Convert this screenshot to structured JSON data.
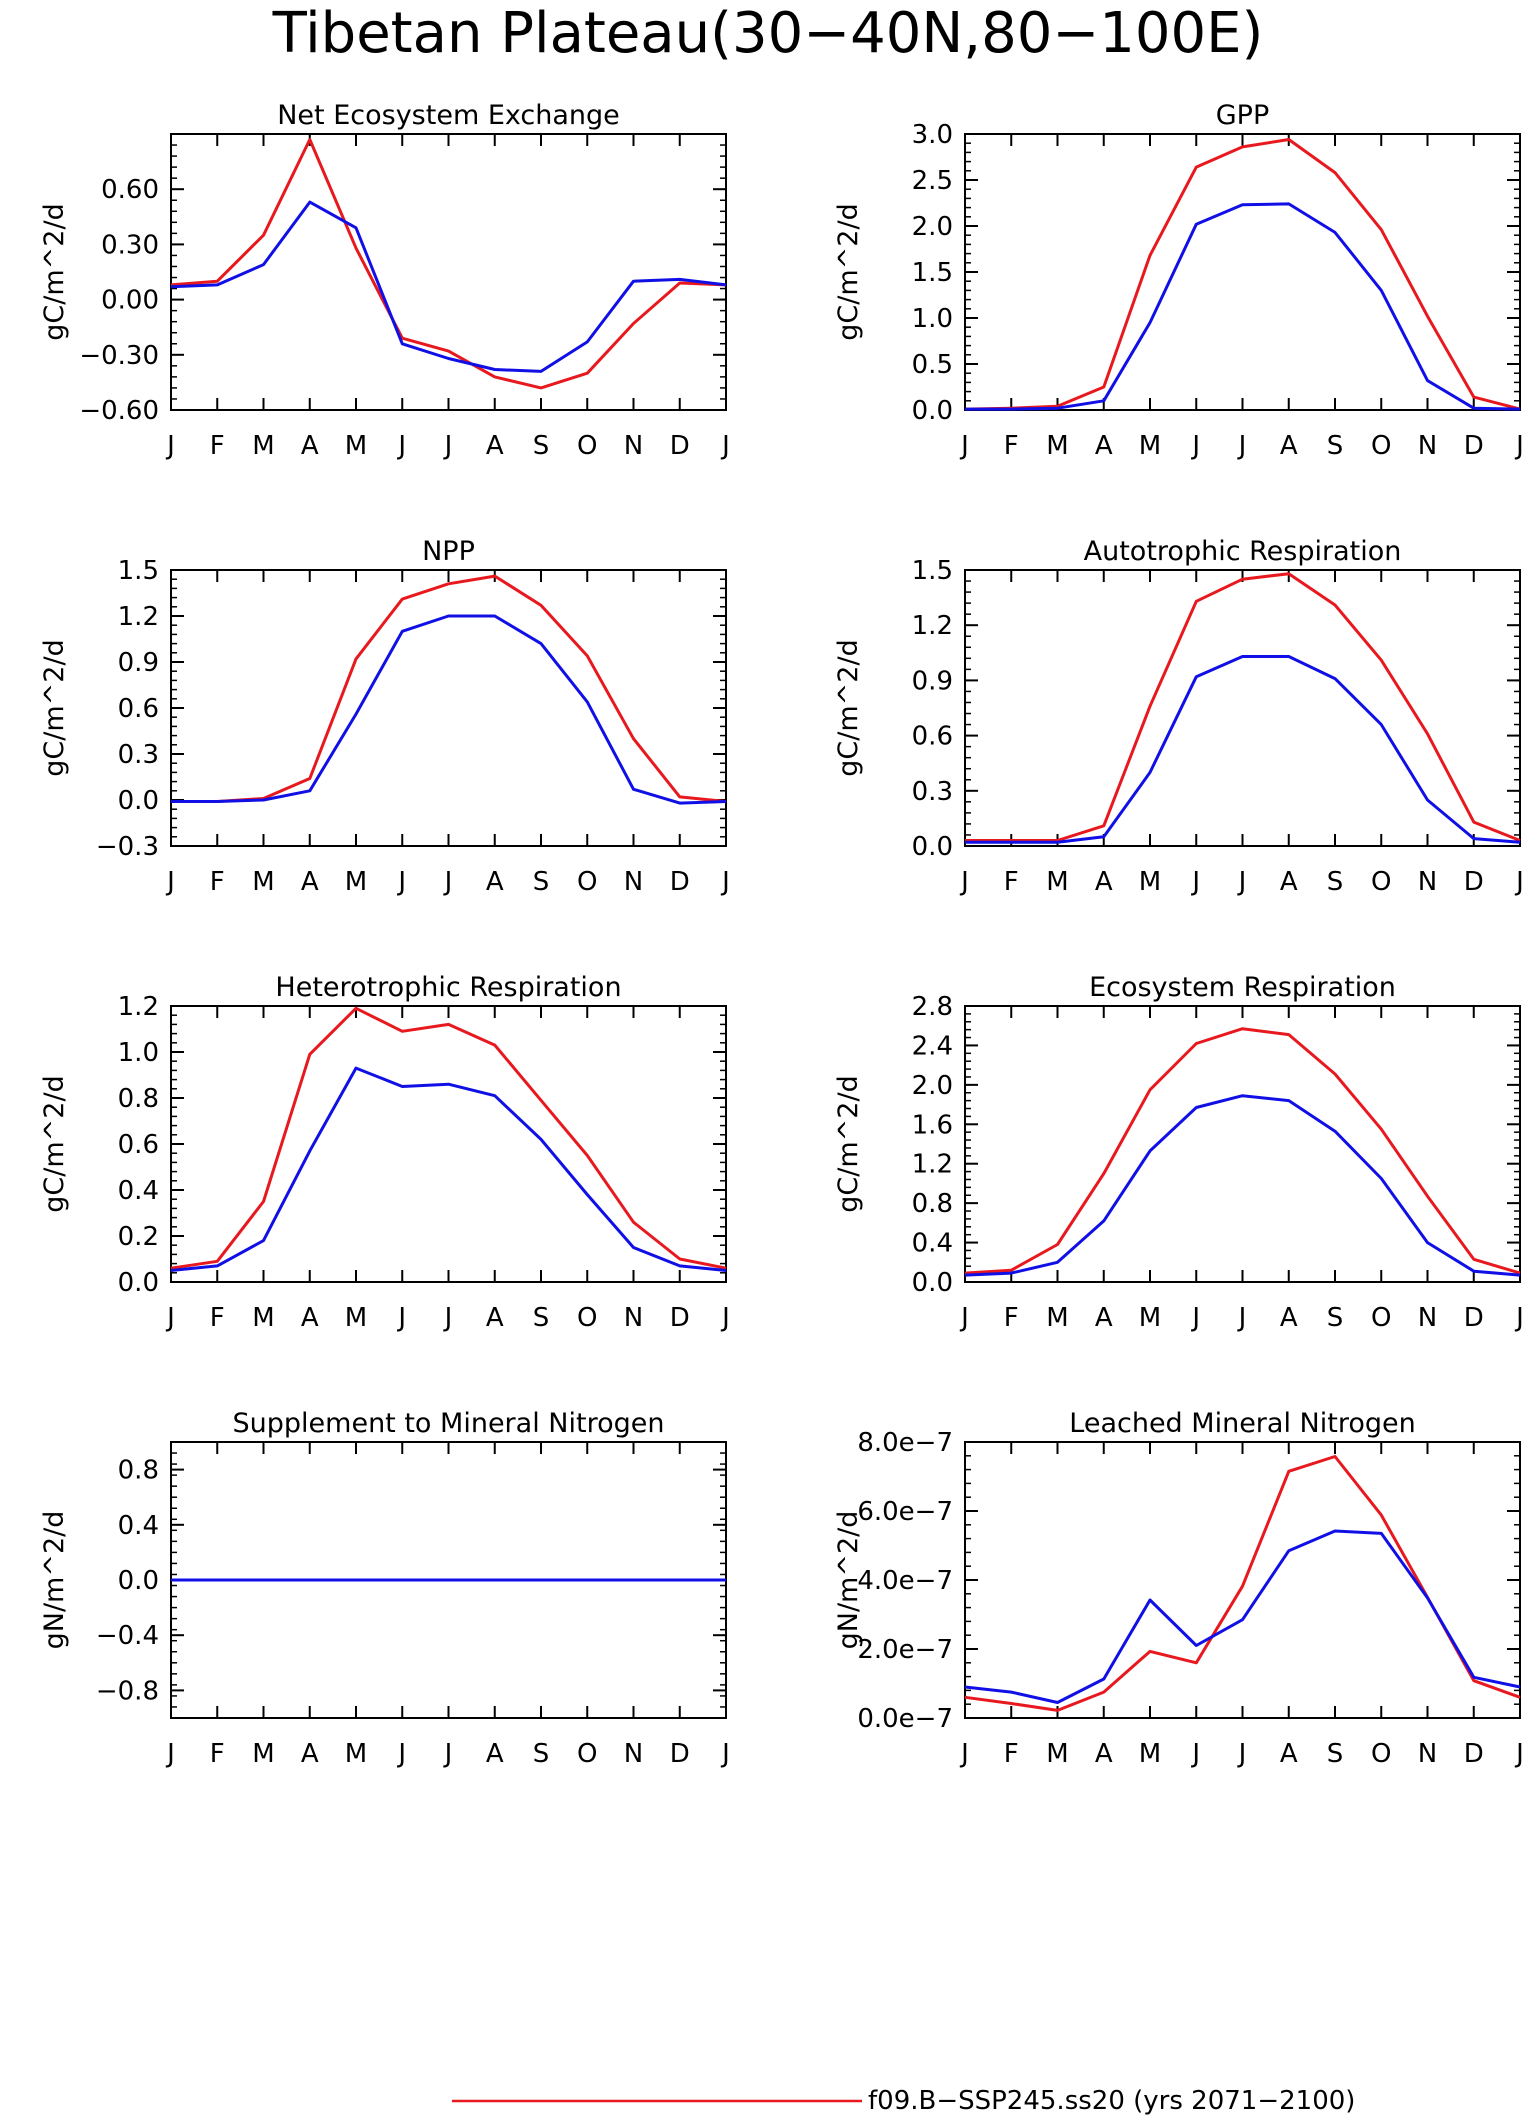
{
  "figure": {
    "title": "Tibetan Plateau(30−40N,80−100E)",
    "legend_label": "f09.B−SSP245.ss20 (yrs 2071−2100)",
    "legend_color": "#e8191e",
    "series_colors": [
      "#e8191e",
      "#1010e6"
    ]
  },
  "chart_data": [
    {
      "type": "line",
      "title": "Net Ecosystem Exchange",
      "ylabel": "gC/m^2/d",
      "categories": [
        "J",
        "F",
        "M",
        "A",
        "M",
        "J",
        "J",
        "A",
        "S",
        "O",
        "N",
        "D",
        "J"
      ],
      "ylim": [
        -0.6,
        0.9
      ],
      "yticks": [
        -0.6,
        -0.3,
        0.0,
        0.3,
        0.6
      ],
      "ytick_labels": [
        "−0.60",
        "−0.30",
        "0.00",
        "0.30",
        "0.60"
      ],
      "series": [
        {
          "color": "#e8191e",
          "values": [
            0.08,
            0.1,
            0.35,
            0.87,
            0.28,
            -0.21,
            -0.28,
            -0.42,
            -0.48,
            -0.4,
            -0.13,
            0.09,
            0.08
          ]
        },
        {
          "color": "#1010e6",
          "values": [
            0.07,
            0.08,
            0.19,
            0.53,
            0.39,
            -0.24,
            -0.32,
            -0.38,
            -0.39,
            -0.23,
            0.1,
            0.11,
            0.08
          ]
        }
      ]
    },
    {
      "type": "line",
      "title": "GPP",
      "ylabel": "gC/m^2/d",
      "categories": [
        "J",
        "F",
        "M",
        "A",
        "M",
        "J",
        "J",
        "A",
        "S",
        "O",
        "N",
        "D",
        "J"
      ],
      "ylim": [
        0.0,
        3.0
      ],
      "yticks": [
        0.0,
        0.5,
        1.0,
        1.5,
        2.0,
        2.5,
        3.0
      ],
      "ytick_labels": [
        "0.0",
        "0.5",
        "1.0",
        "1.5",
        "2.0",
        "2.5",
        "3.0"
      ],
      "series": [
        {
          "color": "#e8191e",
          "values": [
            0.01,
            0.02,
            0.04,
            0.25,
            1.68,
            2.64,
            2.86,
            2.94,
            2.58,
            1.96,
            1.02,
            0.14,
            0.01
          ]
        },
        {
          "color": "#1010e6",
          "values": [
            0.01,
            0.01,
            0.02,
            0.1,
            0.95,
            2.02,
            2.23,
            2.24,
            1.93,
            1.3,
            0.32,
            0.02,
            0.01
          ]
        }
      ]
    },
    {
      "type": "line",
      "title": "NPP",
      "ylabel": "gC/m^2/d",
      "categories": [
        "J",
        "F",
        "M",
        "A",
        "M",
        "J",
        "J",
        "A",
        "S",
        "O",
        "N",
        "D",
        "J"
      ],
      "ylim": [
        -0.3,
        1.5
      ],
      "yticks": [
        -0.3,
        0.0,
        0.3,
        0.6,
        0.9,
        1.2,
        1.5
      ],
      "ytick_labels": [
        "−0.3",
        "0.0",
        "0.3",
        "0.6",
        "0.9",
        "1.2",
        "1.5"
      ],
      "series": [
        {
          "color": "#e8191e",
          "values": [
            -0.01,
            -0.01,
            0.01,
            0.14,
            0.92,
            1.31,
            1.41,
            1.46,
            1.27,
            0.94,
            0.4,
            0.02,
            -0.01
          ]
        },
        {
          "color": "#1010e6",
          "values": [
            -0.01,
            -0.01,
            0.0,
            0.06,
            0.56,
            1.1,
            1.2,
            1.2,
            1.02,
            0.64,
            0.07,
            -0.02,
            -0.01
          ]
        }
      ]
    },
    {
      "type": "line",
      "title": "Autotrophic Respiration",
      "ylabel": "gC/m^2/d",
      "categories": [
        "J",
        "F",
        "M",
        "A",
        "M",
        "J",
        "J",
        "A",
        "S",
        "O",
        "N",
        "D",
        "J"
      ],
      "ylim": [
        0.0,
        1.5
      ],
      "yticks": [
        0.0,
        0.3,
        0.6,
        0.9,
        1.2,
        1.5
      ],
      "ytick_labels": [
        "0.0",
        "0.3",
        "0.6",
        "0.9",
        "1.2",
        "1.5"
      ],
      "series": [
        {
          "color": "#e8191e",
          "values": [
            0.03,
            0.03,
            0.03,
            0.11,
            0.76,
            1.33,
            1.45,
            1.48,
            1.31,
            1.01,
            0.61,
            0.13,
            0.03
          ]
        },
        {
          "color": "#1010e6",
          "values": [
            0.02,
            0.02,
            0.02,
            0.05,
            0.4,
            0.92,
            1.03,
            1.03,
            0.91,
            0.66,
            0.25,
            0.04,
            0.02
          ]
        }
      ]
    },
    {
      "type": "line",
      "title": "Heterotrophic Respiration",
      "ylabel": "gC/m^2/d",
      "categories": [
        "J",
        "F",
        "M",
        "A",
        "M",
        "J",
        "J",
        "A",
        "S",
        "O",
        "N",
        "D",
        "J"
      ],
      "ylim": [
        0.0,
        1.2
      ],
      "yticks": [
        0.0,
        0.2,
        0.4,
        0.6,
        0.8,
        1.0,
        1.2
      ],
      "ytick_labels": [
        "0.0",
        "0.2",
        "0.4",
        "0.6",
        "0.8",
        "1.0",
        "1.2"
      ],
      "series": [
        {
          "color": "#e8191e",
          "values": [
            0.06,
            0.09,
            0.35,
            0.99,
            1.19,
            1.09,
            1.12,
            1.03,
            0.79,
            0.55,
            0.26,
            0.1,
            0.06
          ]
        },
        {
          "color": "#1010e6",
          "values": [
            0.05,
            0.07,
            0.18,
            0.57,
            0.93,
            0.85,
            0.86,
            0.81,
            0.62,
            0.38,
            0.15,
            0.07,
            0.05
          ]
        }
      ]
    },
    {
      "type": "line",
      "title": "Ecosystem Respiration",
      "ylabel": "gC/m^2/d",
      "categories": [
        "J",
        "F",
        "M",
        "A",
        "M",
        "J",
        "J",
        "A",
        "S",
        "O",
        "N",
        "D",
        "J"
      ],
      "ylim": [
        0.0,
        2.8
      ],
      "yticks": [
        0.0,
        0.4,
        0.8,
        1.2,
        1.6,
        2.0,
        2.4,
        2.8
      ],
      "ytick_labels": [
        "0.0",
        "0.4",
        "0.8",
        "1.2",
        "1.6",
        "2.0",
        "2.4",
        "2.8"
      ],
      "series": [
        {
          "color": "#e8191e",
          "values": [
            0.09,
            0.12,
            0.38,
            1.1,
            1.95,
            2.42,
            2.57,
            2.51,
            2.11,
            1.55,
            0.87,
            0.23,
            0.09
          ]
        },
        {
          "color": "#1010e6",
          "values": [
            0.07,
            0.09,
            0.2,
            0.62,
            1.33,
            1.77,
            1.89,
            1.84,
            1.53,
            1.05,
            0.4,
            0.11,
            0.07
          ]
        }
      ]
    },
    {
      "type": "line",
      "title": "Supplement to Mineral Nitrogen",
      "ylabel": "gN/m^2/d",
      "categories": [
        "J",
        "F",
        "M",
        "A",
        "M",
        "J",
        "J",
        "A",
        "S",
        "O",
        "N",
        "D",
        "J"
      ],
      "ylim": [
        -1.0,
        1.0
      ],
      "yticks": [
        -0.8,
        -0.4,
        0.0,
        0.4,
        0.8
      ],
      "ytick_labels": [
        "−0.8",
        "−0.4",
        "0.0",
        "0.4",
        "0.8"
      ],
      "series": [
        {
          "color": "#e8191e",
          "values": [
            0,
            0,
            0,
            0,
            0,
            0,
            0,
            0,
            0,
            0,
            0,
            0,
            0
          ]
        },
        {
          "color": "#1010e6",
          "values": [
            0,
            0,
            0,
            0,
            0,
            0,
            0,
            0,
            0,
            0,
            0,
            0,
            0
          ]
        }
      ]
    },
    {
      "type": "line",
      "title": "Leached Mineral Nitrogen",
      "ylabel": "gN/m^2/d",
      "categories": [
        "J",
        "F",
        "M",
        "A",
        "M",
        "J",
        "J",
        "A",
        "S",
        "O",
        "N",
        "D",
        "J"
      ],
      "ylim": [
        0.0,
        8e-07
      ],
      "yticks": [
        0.0,
        2e-07,
        4e-07,
        6e-07,
        8e-07
      ],
      "ytick_labels": [
        "0.0e−7",
        "2.0e−7",
        "4.0e−7",
        "6.0e−7",
        "8.0e−7"
      ],
      "series": [
        {
          "color": "#e8191e",
          "values": [
            6e-08,
            4.2e-08,
            2.2e-08,
            7.5e-08,
            1.93e-07,
            1.6e-07,
            3.82e-07,
            7.15e-07,
            7.58e-07,
            5.88e-07,
            3.5e-07,
            1.08e-07,
            6e-08
          ]
        },
        {
          "color": "#1010e6",
          "values": [
            9e-08,
            7.5e-08,
            4.5e-08,
            1.13e-07,
            3.42e-07,
            2.1e-07,
            2.85e-07,
            4.85e-07,
            5.42e-07,
            5.35e-07,
            3.48e-07,
            1.18e-07,
            9e-08
          ]
        }
      ]
    }
  ]
}
